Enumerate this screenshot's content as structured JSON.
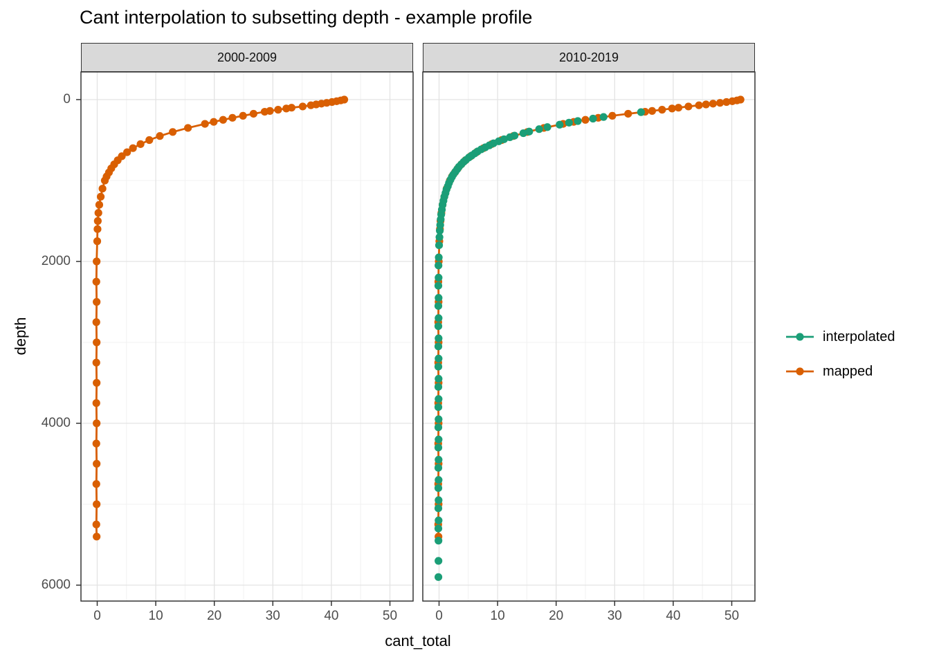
{
  "title": "Cant interpolation to subsetting depth - example profile",
  "facets": [
    "2000-2009",
    "2010-2019"
  ],
  "axes": {
    "x_label": "cant_total",
    "y_label": "depth",
    "x_ticks": [
      0,
      10,
      20,
      30,
      40,
      50
    ],
    "y_ticks": [
      0,
      2000,
      4000,
      6000
    ],
    "x_minor_ticks": [
      5,
      15,
      25,
      35,
      45
    ],
    "y_minor_ticks": [
      1000,
      3000,
      5000
    ]
  },
  "legend": {
    "position": "right",
    "items": [
      {
        "label": "interpolated",
        "color": "#1B9E77"
      },
      {
        "label": "mapped",
        "color": "#D95F02"
      }
    ]
  },
  "colors": {
    "interpolated": "#1B9E77",
    "mapped": "#D95F02",
    "grid_major": "#E3E3E3",
    "grid_minor": "#F1F1F1",
    "panel_border": "#333333",
    "strip_fill": "#D9D9D9",
    "tick_text": "#4D4D4D"
  },
  "chart_data": {
    "type": "scatter",
    "title": "Cant interpolation to subsetting depth - example profile",
    "xlabel": "cant_total",
    "ylabel": "depth",
    "x_range": [
      -2.8,
      54.1
    ],
    "y_range_reversed": [
      6190,
      -340
    ],
    "grid": true,
    "legend_position": "right",
    "point_units": "[cant_total, depth_m]",
    "facets": [
      {
        "name": "2000-2009",
        "series": [
          {
            "name": "mapped",
            "color": "#D95F02",
            "line": true,
            "points": [
              [
                42.2,
                0
              ],
              [
                41.6,
                10
              ],
              [
                40.9,
                20
              ],
              [
                40.1,
                30
              ],
              [
                39.2,
                40
              ],
              [
                38.3,
                50
              ],
              [
                37.4,
                60
              ],
              [
                36.5,
                70
              ],
              [
                35.1,
                85
              ],
              [
                33.2,
                100
              ],
              [
                32.3,
                110
              ],
              [
                30.9,
                125
              ],
              [
                29.5,
                140
              ],
              [
                28.6,
                150
              ],
              [
                26.7,
                175
              ],
              [
                24.9,
                200
              ],
              [
                23.1,
                225
              ],
              [
                21.5,
                250
              ],
              [
                19.9,
                275
              ],
              [
                18.4,
                300
              ],
              [
                15.5,
                350
              ],
              [
                12.9,
                400
              ],
              [
                10.7,
                450
              ],
              [
                8.9,
                500
              ],
              [
                7.4,
                550
              ],
              [
                6.1,
                600
              ],
              [
                5.1,
                650
              ],
              [
                4.2,
                700
              ],
              [
                3.5,
                750
              ],
              [
                2.9,
                800
              ],
              [
                2.4,
                850
              ],
              [
                2.0,
                900
              ],
              [
                1.6,
                950
              ],
              [
                1.3,
                1000
              ],
              [
                0.9,
                1100
              ],
              [
                0.6,
                1200
              ],
              [
                0.35,
                1300
              ],
              [
                0.2,
                1400
              ],
              [
                0.1,
                1500
              ],
              [
                0.05,
                1600
              ],
              [
                0.0,
                1750
              ],
              [
                -0.1,
                2000
              ],
              [
                -0.15,
                2250
              ],
              [
                -0.1,
                2500
              ],
              [
                -0.15,
                2750
              ],
              [
                -0.1,
                3000
              ],
              [
                -0.15,
                3250
              ],
              [
                -0.1,
                3500
              ],
              [
                -0.15,
                3750
              ],
              [
                -0.1,
                4000
              ],
              [
                -0.15,
                4250
              ],
              [
                -0.1,
                4500
              ],
              [
                -0.15,
                4750
              ],
              [
                -0.1,
                5000
              ],
              [
                -0.15,
                5250
              ],
              [
                -0.1,
                5400
              ]
            ]
          }
        ]
      },
      {
        "name": "2010-2019",
        "series": [
          {
            "name": "mapped",
            "color": "#D95F02",
            "line": true,
            "points": [
              [
                51.5,
                0
              ],
              [
                50.9,
                10
              ],
              [
                50.1,
                20
              ],
              [
                49.1,
                30
              ],
              [
                48.0,
                40
              ],
              [
                46.8,
                50
              ],
              [
                45.6,
                60
              ],
              [
                44.4,
                70
              ],
              [
                42.6,
                85
              ],
              [
                40.9,
                100
              ],
              [
                39.8,
                110
              ],
              [
                38.1,
                125
              ],
              [
                36.4,
                140
              ],
              [
                35.2,
                150
              ],
              [
                32.3,
                175
              ],
              [
                29.6,
                200
              ],
              [
                27.2,
                225
              ],
              [
                25.0,
                250
              ],
              [
                23.0,
                275
              ],
              [
                21.2,
                300
              ],
              [
                17.9,
                350
              ],
              [
                15.1,
                400
              ],
              [
                12.7,
                450
              ],
              [
                10.7,
                500
              ],
              [
                9.0,
                550
              ],
              [
                7.6,
                600
              ],
              [
                6.4,
                650
              ],
              [
                5.4,
                700
              ],
              [
                4.5,
                750
              ],
              [
                3.8,
                800
              ],
              [
                3.2,
                850
              ],
              [
                2.7,
                900
              ],
              [
                2.2,
                950
              ],
              [
                1.85,
                1000
              ],
              [
                1.3,
                1100
              ],
              [
                0.9,
                1200
              ],
              [
                0.6,
                1300
              ],
              [
                0.4,
                1400
              ],
              [
                0.25,
                1500
              ],
              [
                0.15,
                1600
              ],
              [
                0.05,
                1750
              ],
              [
                -0.05,
                2000
              ],
              [
                -0.12,
                2250
              ],
              [
                -0.08,
                2500
              ],
              [
                -0.14,
                2750
              ],
              [
                -0.08,
                3000
              ],
              [
                -0.14,
                3250
              ],
              [
                -0.08,
                3500
              ],
              [
                -0.14,
                3750
              ],
              [
                -0.08,
                4000
              ],
              [
                -0.14,
                4250
              ],
              [
                -0.08,
                4500
              ],
              [
                -0.14,
                4750
              ],
              [
                -0.08,
                5000
              ],
              [
                -0.14,
                5250
              ],
              [
                -0.1,
                5400
              ]
            ]
          },
          {
            "name": "interpolated",
            "color": "#1B9E77",
            "line": false,
            "points": [
              [
                34.5,
                155
              ],
              [
                28.1,
                215
              ],
              [
                26.3,
                235
              ],
              [
                23.7,
                265
              ],
              [
                22.2,
                285
              ],
              [
                20.6,
                310
              ],
              [
                18.5,
                340
              ],
              [
                17.1,
                365
              ],
              [
                15.4,
                395
              ],
              [
                14.4,
                415
              ],
              [
                12.9,
                445
              ],
              [
                12.1,
                465
              ],
              [
                11.1,
                490
              ],
              [
                10.2,
                515
              ],
              [
                9.3,
                540
              ],
              [
                8.6,
                565
              ],
              [
                7.9,
                590
              ],
              [
                7.2,
                615
              ],
              [
                6.6,
                640
              ],
              [
                6.1,
                665
              ],
              [
                5.6,
                690
              ],
              [
                5.1,
                715
              ],
              [
                4.6,
                745
              ],
              [
                4.2,
                770
              ],
              [
                3.8,
                800
              ],
              [
                3.4,
                830
              ],
              [
                3.1,
                860
              ],
              [
                2.8,
                890
              ],
              [
                2.45,
                925
              ],
              [
                2.2,
                955
              ],
              [
                1.95,
                990
              ],
              [
                1.7,
                1030
              ],
              [
                1.5,
                1070
              ],
              [
                1.27,
                1110
              ],
              [
                1.1,
                1155
              ],
              [
                0.9,
                1200
              ],
              [
                0.75,
                1250
              ],
              [
                0.6,
                1300
              ],
              [
                0.48,
                1360
              ],
              [
                0.37,
                1420
              ],
              [
                0.28,
                1480
              ],
              [
                0.2,
                1550
              ],
              [
                0.13,
                1620
              ],
              [
                0.07,
                1700
              ],
              [
                0.0,
                1800
              ],
              [
                -0.05,
                1950
              ],
              [
                -0.1,
                2050
              ],
              [
                -0.08,
                2200
              ],
              [
                -0.12,
                2300
              ],
              [
                -0.08,
                2450
              ],
              [
                -0.12,
                2550
              ],
              [
                -0.08,
                2700
              ],
              [
                -0.12,
                2800
              ],
              [
                -0.08,
                2950
              ],
              [
                -0.12,
                3050
              ],
              [
                -0.08,
                3200
              ],
              [
                -0.12,
                3300
              ],
              [
                -0.08,
                3450
              ],
              [
                -0.12,
                3550
              ],
              [
                -0.08,
                3700
              ],
              [
                -0.12,
                3800
              ],
              [
                -0.08,
                3950
              ],
              [
                -0.12,
                4050
              ],
              [
                -0.08,
                4200
              ],
              [
                -0.12,
                4300
              ],
              [
                -0.08,
                4450
              ],
              [
                -0.12,
                4550
              ],
              [
                -0.08,
                4700
              ],
              [
                -0.12,
                4800
              ],
              [
                -0.08,
                4950
              ],
              [
                -0.12,
                5050
              ],
              [
                -0.08,
                5200
              ],
              [
                -0.12,
                5300
              ],
              [
                -0.1,
                5450
              ],
              [
                -0.1,
                5700
              ],
              [
                -0.11,
                5900
              ]
            ]
          }
        ]
      }
    ]
  }
}
